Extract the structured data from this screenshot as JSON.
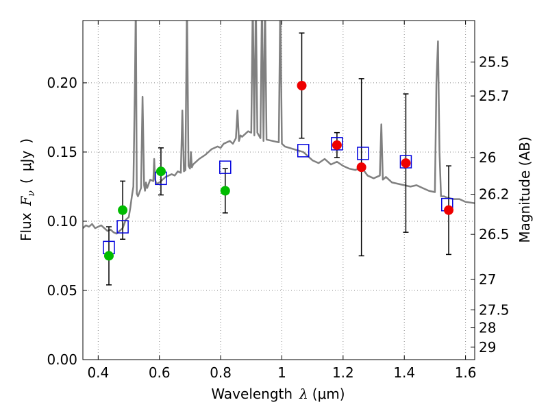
{
  "chart_data": {
    "type": "scatter",
    "xlabel": "Wavelength",
    "xlabel_symbol": "λ",
    "xlabel_unit": "(μm)",
    "ylabel": "Flux",
    "ylabel_symbol": "F",
    "ylabel_symbol_sub": "ν",
    "ylabel_unit_open": "(",
    "ylabel_unit": "μJy",
    "ylabel_unit_close": ")",
    "y2label": "Magnitude (AB)",
    "xlim": [
      0.35,
      1.63
    ],
    "ylim": [
      0.0,
      0.245
    ],
    "grid": true,
    "x_ticks": [
      {
        "value": 0.4,
        "label": "0.4"
      },
      {
        "value": 0.6,
        "label": "0.6"
      },
      {
        "value": 0.8,
        "label": "0.8"
      },
      {
        "value": 1.0,
        "label": "1"
      },
      {
        "value": 1.2,
        "label": "1.2"
      },
      {
        "value": 1.4,
        "label": "1.4"
      },
      {
        "value": 1.6,
        "label": "1.6"
      }
    ],
    "y_ticks": [
      {
        "value": 0.0,
        "label": "0.00"
      },
      {
        "value": 0.05,
        "label": "0.05"
      },
      {
        "value": 0.1,
        "label": "0.10"
      },
      {
        "value": 0.15,
        "label": "0.15"
      },
      {
        "value": 0.2,
        "label": "0.20"
      }
    ],
    "y2_ticks": [
      {
        "flux": 0.215,
        "label": "25.5"
      },
      {
        "flux": 0.1905,
        "label": "25.7"
      },
      {
        "flux": 0.146,
        "label": "26"
      },
      {
        "flux": 0.1195,
        "label": "26.2"
      },
      {
        "flux": 0.0905,
        "label": "26.5"
      },
      {
        "flux": 0.058,
        "label": "27"
      },
      {
        "flux": 0.036,
        "label": "27.5"
      },
      {
        "flux": 0.023,
        "label": "28"
      },
      {
        "flux": 0.009,
        "label": "29"
      }
    ],
    "colors": {
      "spectrum": "#808080",
      "green_points": "#00bb00",
      "red_points": "#ee0000",
      "model_boxes": "#0000dd",
      "error_bars": "#000000",
      "grid": "#888888"
    },
    "series": [
      {
        "name": "model-spectrum",
        "kind": "line",
        "x": [
          0.35,
          0.36,
          0.37,
          0.38,
          0.39,
          0.4,
          0.41,
          0.42,
          0.43,
          0.44,
          0.45,
          0.46,
          0.47,
          0.48,
          0.49,
          0.5,
          0.505,
          0.51,
          0.515,
          0.52,
          0.523,
          0.526,
          0.53,
          0.54,
          0.545,
          0.55,
          0.553,
          0.556,
          0.56,
          0.57,
          0.58,
          0.583,
          0.586,
          0.59,
          0.6,
          0.61,
          0.62,
          0.64,
          0.65,
          0.66,
          0.67,
          0.675,
          0.68,
          0.685,
          0.69,
          0.695,
          0.7,
          0.703,
          0.706,
          0.71,
          0.73,
          0.75,
          0.77,
          0.79,
          0.8,
          0.81,
          0.82,
          0.83,
          0.84,
          0.85,
          0.855,
          0.86,
          0.865,
          0.87,
          0.88,
          0.89,
          0.9,
          0.905,
          0.91,
          0.915,
          0.92,
          0.93,
          0.935,
          0.94,
          0.945,
          0.95,
          0.97,
          0.99,
          0.995,
          1.0,
          1.005,
          1.01,
          1.04,
          1.07,
          1.09,
          1.1,
          1.12,
          1.14,
          1.16,
          1.18,
          1.2,
          1.22,
          1.24,
          1.26,
          1.28,
          1.3,
          1.32,
          1.325,
          1.33,
          1.34,
          1.36,
          1.38,
          1.4,
          1.42,
          1.44,
          1.46,
          1.48,
          1.5,
          1.505,
          1.51,
          1.515,
          1.52,
          1.53,
          1.54,
          1.56,
          1.58,
          1.6,
          1.63
        ],
        "y": [
          0.095,
          0.097,
          0.096,
          0.098,
          0.095,
          0.096,
          0.097,
          0.095,
          0.093,
          0.094,
          0.092,
          0.091,
          0.093,
          0.095,
          0.101,
          0.103,
          0.11,
          0.118,
          0.125,
          0.2,
          0.26,
          0.12,
          0.118,
          0.124,
          0.19,
          0.126,
          0.122,
          0.128,
          0.124,
          0.13,
          0.129,
          0.145,
          0.13,
          0.127,
          0.128,
          0.13,
          0.132,
          0.134,
          0.133,
          0.136,
          0.135,
          0.18,
          0.136,
          0.137,
          0.26,
          0.14,
          0.138,
          0.15,
          0.139,
          0.141,
          0.145,
          0.148,
          0.152,
          0.154,
          0.153,
          0.156,
          0.157,
          0.158,
          0.156,
          0.16,
          0.18,
          0.158,
          0.162,
          0.161,
          0.163,
          0.165,
          0.164,
          0.26,
          0.162,
          0.26,
          0.164,
          0.16,
          0.26,
          0.158,
          0.26,
          0.159,
          0.158,
          0.157,
          0.26,
          0.156,
          0.155,
          0.154,
          0.152,
          0.15,
          0.146,
          0.144,
          0.142,
          0.145,
          0.141,
          0.143,
          0.14,
          0.138,
          0.137,
          0.139,
          0.133,
          0.131,
          0.133,
          0.17,
          0.13,
          0.132,
          0.128,
          0.127,
          0.126,
          0.125,
          0.126,
          0.124,
          0.122,
          0.121,
          0.2,
          0.23,
          0.15,
          0.118,
          0.118,
          0.117,
          0.116,
          0.116,
          0.114,
          0.113
        ]
      },
      {
        "name": "green-detections",
        "kind": "points",
        "marker": "circle",
        "points": [
          {
            "x": 0.435,
            "y": 0.075,
            "err": 0.021
          },
          {
            "x": 0.48,
            "y": 0.108,
            "err": 0.021
          },
          {
            "x": 0.605,
            "y": 0.136,
            "err": 0.017
          },
          {
            "x": 0.815,
            "y": 0.122,
            "err": 0.016
          }
        ]
      },
      {
        "name": "red-detections",
        "kind": "points",
        "marker": "circle",
        "points": [
          {
            "x": 1.065,
            "y": 0.198,
            "err": 0.038
          },
          {
            "x": 1.18,
            "y": 0.155,
            "err": 0.009
          },
          {
            "x": 1.26,
            "y": 0.139,
            "err": 0.064
          },
          {
            "x": 1.405,
            "y": 0.142,
            "err": 0.05
          },
          {
            "x": 1.545,
            "y": 0.108,
            "err": 0.032
          }
        ]
      },
      {
        "name": "model-photometry",
        "kind": "points",
        "marker": "square",
        "points": [
          {
            "x": 0.435,
            "y": 0.081
          },
          {
            "x": 0.48,
            "y": 0.096
          },
          {
            "x": 0.605,
            "y": 0.131
          },
          {
            "x": 0.815,
            "y": 0.139
          },
          {
            "x": 1.07,
            "y": 0.151
          },
          {
            "x": 1.18,
            "y": 0.156
          },
          {
            "x": 1.265,
            "y": 0.149
          },
          {
            "x": 1.405,
            "y": 0.143
          },
          {
            "x": 1.54,
            "y": 0.112
          }
        ]
      }
    ]
  }
}
